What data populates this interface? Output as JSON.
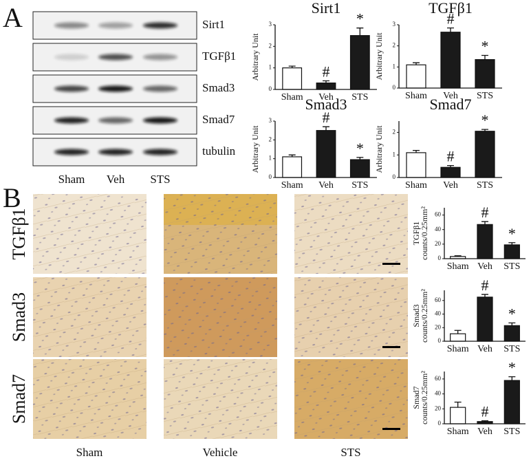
{
  "panel_labels": [
    "A",
    "B"
  ],
  "blot": {
    "rows": [
      "Sirt1",
      "TGFβ1",
      "Smad3",
      "Smad7",
      "tubulin"
    ],
    "lanes": [
      "Sham",
      "Veh",
      "STS"
    ]
  },
  "histology": {
    "rows": [
      "TGFβ1",
      "Smad3",
      "Smad7"
    ],
    "columns": [
      "Sham",
      "Vehicle",
      "STS"
    ]
  },
  "chart_data": [
    {
      "type": "bar",
      "title": "Sirt1",
      "ylabel": [
        "Arbitrary Unit"
      ],
      "categories": [
        "Sham",
        "Veh",
        "STS"
      ],
      "values": [
        1.0,
        0.3,
        2.5
      ],
      "errors": [
        0.08,
        0.1,
        0.35
      ],
      "annotations": [
        null,
        "#",
        "*"
      ],
      "colors": [
        "#ffffff",
        "#1a1a1a",
        "#1a1a1a"
      ],
      "ylim": [
        0,
        3
      ],
      "yticks": [
        0,
        1,
        2,
        3
      ]
    },
    {
      "type": "bar",
      "title": "TGFβ1",
      "ylabel": [
        "Arbitrary Unit"
      ],
      "categories": [
        "Sham",
        "Veh",
        "STS"
      ],
      "values": [
        1.1,
        2.65,
        1.35
      ],
      "errors": [
        0.1,
        0.2,
        0.2
      ],
      "annotations": [
        null,
        "#",
        "*"
      ],
      "colors": [
        "#ffffff",
        "#1a1a1a",
        "#1a1a1a"
      ],
      "ylim": [
        0,
        3
      ],
      "yticks": [
        0,
        1,
        2,
        3
      ]
    },
    {
      "type": "bar",
      "title": "Smad3",
      "ylabel": [
        "Arbitrary Unit"
      ],
      "categories": [
        "Sham",
        "Veh",
        "STS"
      ],
      "values": [
        1.1,
        2.5,
        0.95
      ],
      "errors": [
        0.1,
        0.2,
        0.12
      ],
      "annotations": [
        null,
        "#",
        "*"
      ],
      "colors": [
        "#ffffff",
        "#1a1a1a",
        "#1a1a1a"
      ],
      "ylim": [
        0,
        3
      ],
      "yticks": [
        0,
        1,
        2,
        3
      ]
    },
    {
      "type": "bar",
      "title": "Smad7",
      "ylabel": [
        "Arbitrary Unit"
      ],
      "categories": [
        "Sham",
        "Veh",
        "STS"
      ],
      "values": [
        1.1,
        0.45,
        2.05
      ],
      "errors": [
        0.1,
        0.08,
        0.08
      ],
      "annotations": [
        null,
        "#",
        "*"
      ],
      "colors": [
        "#ffffff",
        "#1a1a1a",
        "#1a1a1a"
      ],
      "ylim": [
        0,
        2.5
      ],
      "yticks": [
        0,
        1,
        2
      ]
    },
    {
      "type": "bar",
      "ylabel": [
        "TGFβ1",
        "counts/0.25mm²"
      ],
      "categories": [
        "Sham",
        "Veh",
        "STS"
      ],
      "values": [
        3,
        47,
        19
      ],
      "errors": [
        1,
        4,
        3
      ],
      "annotations": [
        null,
        "#",
        "*"
      ],
      "colors": [
        "#ffffff",
        "#1a1a1a",
        "#1a1a1a"
      ],
      "ylim": [
        0,
        70
      ],
      "yticks": [
        0,
        20,
        40,
        60
      ]
    },
    {
      "type": "bar",
      "ylabel": [
        "Smad3",
        "counts/0.25mm²"
      ],
      "categories": [
        "Sham",
        "Veh",
        "STS"
      ],
      "values": [
        11,
        65,
        23
      ],
      "errors": [
        5,
        4,
        4
      ],
      "annotations": [
        null,
        "#",
        "*"
      ],
      "colors": [
        "#ffffff",
        "#1a1a1a",
        "#1a1a1a"
      ],
      "ylim": [
        0,
        75
      ],
      "yticks": [
        0,
        20,
        40,
        60
      ]
    },
    {
      "type": "bar",
      "ylabel": [
        "Smad7",
        "counts/0.25mm²"
      ],
      "categories": [
        "Sham",
        "Veh",
        "STS"
      ],
      "values": [
        22,
        3,
        58
      ],
      "errors": [
        7,
        1,
        5
      ],
      "annotations": [
        null,
        "#",
        "*"
      ],
      "colors": [
        "#ffffff",
        "#1a1a1a",
        "#1a1a1a"
      ],
      "ylim": [
        0,
        70
      ],
      "yticks": [
        0,
        20,
        40,
        60
      ]
    }
  ]
}
